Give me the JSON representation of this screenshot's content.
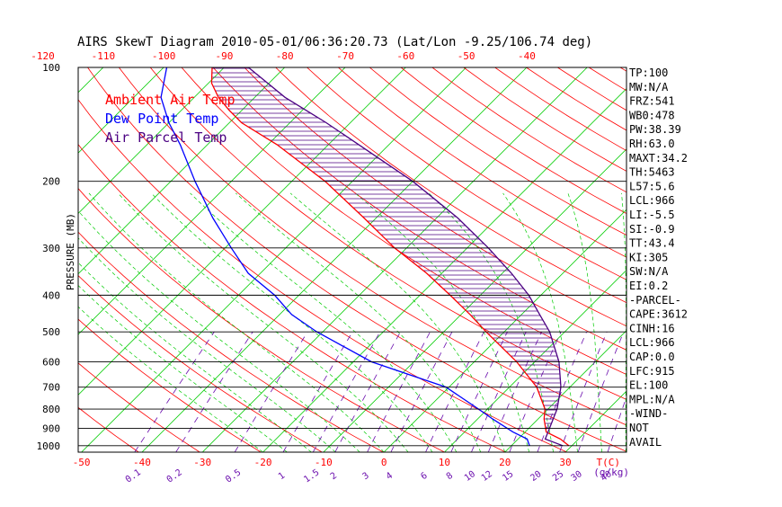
{
  "chart_data": {
    "type": "line",
    "title": "AIRS SkewT Diagram 2010-05-01/06:36:20.73 (Lat/Lon -9.25/106.74 deg)",
    "ylabel": "PRESSURE (MB)",
    "pressure_ticks": [
      100,
      200,
      300,
      400,
      500,
      600,
      700,
      800,
      900,
      1000
    ],
    "ylim": [
      1040,
      100
    ],
    "y_scale": "log",
    "top_temp_ticks": [
      "-120",
      "-110",
      "-100",
      "-90",
      "-80",
      "-70",
      "-60",
      "-50",
      "-40"
    ],
    "bottom_temp_ticks": [
      "-50",
      "-40",
      "-30",
      "-20",
      "-10",
      "0",
      "10",
      "20",
      "30"
    ],
    "bottom_temp_unit": "T(C)",
    "mixing_ratio_labels": [
      "0.1",
      "0.2",
      "0.5",
      "1",
      "1.5",
      "2",
      "3",
      "4",
      "6",
      "8",
      "10",
      "12",
      "15",
      "20",
      "25",
      "30",
      "40"
    ],
    "mixing_ratio_unit": "(g/kg)",
    "legend": {
      "position": "top-left",
      "items": [
        {
          "name": "Ambient Air Temp",
          "color": "#ff0000"
        },
        {
          "name": "Dew Point Temp",
          "color": "#0000ff"
        },
        {
          "name": "Air Parcel Temp",
          "color": "#4b0082"
        }
      ]
    },
    "series": [
      {
        "name": "Ambient Air Temp",
        "color": "#ff0000",
        "points": [
          {
            "p": 1000,
            "t": 29.5
          },
          {
            "p": 960,
            "t": 27.0
          },
          {
            "p": 920,
            "t": 23.5
          },
          {
            "p": 850,
            "t": 21.0
          },
          {
            "p": 800,
            "t": 19.5
          },
          {
            "p": 700,
            "t": 14.5
          },
          {
            "p": 600,
            "t": 7.0
          },
          {
            "p": 500,
            "t": -3.0
          },
          {
            "p": 450,
            "t": -8.5
          },
          {
            "p": 400,
            "t": -15.0
          },
          {
            "p": 350,
            "t": -22.5
          },
          {
            "p": 300,
            "t": -32.0
          },
          {
            "p": 250,
            "t": -42.0
          },
          {
            "p": 200,
            "t": -54.5
          },
          {
            "p": 160,
            "t": -68.5
          },
          {
            "p": 140,
            "t": -78.0
          },
          {
            "p": 130,
            "t": -82.0
          },
          {
            "p": 120,
            "t": -86.0
          },
          {
            "p": 110,
            "t": -89.5
          },
          {
            "p": 100,
            "t": -92.0
          }
        ]
      },
      {
        "name": "Dew Point Temp",
        "color": "#0000ff",
        "points": [
          {
            "p": 1000,
            "t": 23.0
          },
          {
            "p": 960,
            "t": 21.5
          },
          {
            "p": 920,
            "t": 18.0
          },
          {
            "p": 850,
            "t": 12.5
          },
          {
            "p": 800,
            "t": 8.5
          },
          {
            "p": 700,
            "t": -0.5
          },
          {
            "p": 600,
            "t": -17.0
          },
          {
            "p": 500,
            "t": -31.0
          },
          {
            "p": 450,
            "t": -38.0
          },
          {
            "p": 400,
            "t": -44.0
          },
          {
            "p": 350,
            "t": -52.0
          },
          {
            "p": 300,
            "t": -59.0
          },
          {
            "p": 250,
            "t": -67.0
          },
          {
            "p": 200,
            "t": -76.0
          },
          {
            "p": 160,
            "t": -84.5
          },
          {
            "p": 140,
            "t": -90.0
          },
          {
            "p": 120,
            "t": -95.5
          },
          {
            "p": 100,
            "t": -99.5
          }
        ]
      },
      {
        "name": "Air Parcel Temp",
        "color": "#4b0082",
        "points": [
          {
            "p": 1000,
            "t": 28.5
          },
          {
            "p": 960,
            "t": 24.5
          },
          {
            "p": 920,
            "t": 23.8
          },
          {
            "p": 850,
            "t": 22.5
          },
          {
            "p": 800,
            "t": 21.5
          },
          {
            "p": 700,
            "t": 18.5
          },
          {
            "p": 600,
            "t": 14.0
          },
          {
            "p": 500,
            "t": 7.5
          },
          {
            "p": 450,
            "t": 3.0
          },
          {
            "p": 400,
            "t": -2.0
          },
          {
            "p": 350,
            "t": -8.5
          },
          {
            "p": 300,
            "t": -16.5
          },
          {
            "p": 250,
            "t": -26.5
          },
          {
            "p": 200,
            "t": -40.0
          },
          {
            "p": 160,
            "t": -55.0
          },
          {
            "p": 140,
            "t": -64.0
          },
          {
            "p": 120,
            "t": -75.0
          },
          {
            "p": 100,
            "t": -86.0
          }
        ]
      }
    ],
    "shaded_area": {
      "between": [
        "Air Parcel Temp",
        "Ambient Air Temp"
      ],
      "fill": "horizontal-hatch",
      "color": "#4b0082"
    },
    "indices": [
      "TP:100",
      "MW:N/A",
      "FRZ:541",
      "WB0:478",
      "PW:38.39",
      "RH:63.0",
      "MAXT:34.2",
      "TH:5463",
      "L57:5.6",
      "LCL:966",
      "LI:-5.5",
      "SI:-0.9",
      "TT:43.4",
      "KI:305",
      "SW:N/A",
      "EI:0.2",
      "-PARCEL-",
      "CAPE:3612",
      "CINH:16",
      "LCL:966",
      "CAP:0.0",
      "LFC:915",
      "EL:100",
      "MPL:N/A",
      "-WIND-",
      "NOT",
      "AVAIL"
    ],
    "colors": {
      "isotherm": "#00cc00",
      "dry_adiabat": "#ff0000",
      "moist_adiabat": "#00cc00",
      "mixing_ratio": "#6a0dad",
      "isobar": "#000000",
      "axis_text_red": "#ff0000",
      "axis_text_purple": "#6a0dad"
    },
    "grid": true
  }
}
